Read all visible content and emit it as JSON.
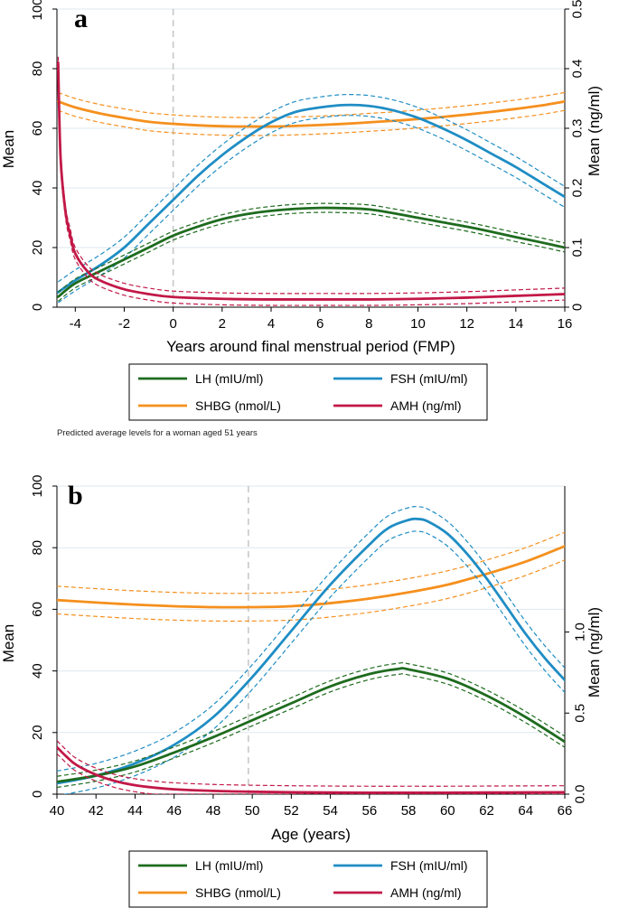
{
  "figure_note": "Predicted average levels for a woman aged 51 years",
  "colors": {
    "LH": "#1e6b1e",
    "FSH": "#1f8dc4",
    "SHBG": "#f5901e",
    "AMH": "#c21847",
    "grid": "#dfe7ee",
    "refline": "#c8c8c8"
  },
  "chart_data": [
    {
      "id": "a",
      "type": "line",
      "panel_label": "a",
      "xlabel": "Years around final menstrual period (FMP)",
      "ylabel": "Mean",
      "y2label": "Mean (ng/ml)",
      "xlim": [
        -4.75,
        16
      ],
      "ylim": [
        0,
        100
      ],
      "y2lim": [
        0,
        0.5
      ],
      "xticks": [
        -4,
        -2,
        0,
        2,
        4,
        6,
        8,
        10,
        12,
        14,
        16
      ],
      "xtick_labels": [
        "-4",
        "-2",
        "0",
        "2",
        "4",
        "6",
        "8",
        "10",
        "12",
        "14",
        "16"
      ],
      "yticks": [
        0,
        20,
        40,
        60,
        80,
        100
      ],
      "ytick_labels": [
        "0",
        "20",
        "40",
        "60",
        "80",
        "100"
      ],
      "y2ticks": [
        0,
        0.1,
        0.2,
        0.3,
        0.4,
        0.5
      ],
      "y2tick_labels": [
        "0",
        "0.1",
        "0.2",
        "0.3",
        "0.4",
        "0.5"
      ],
      "ref_x": 0,
      "series": [
        {
          "name": "LH (mIU/ml)",
          "key": "LH",
          "axis": "left",
          "ci": 1.5,
          "x": [
            -4.7,
            -4,
            -3,
            -2,
            -1,
            0,
            1,
            2,
            3,
            4,
            5,
            6,
            7,
            8,
            9,
            10,
            11,
            12,
            13,
            14,
            15,
            16
          ],
          "y": [
            3.5,
            8,
            12,
            16,
            20,
            24,
            27,
            29.5,
            31.2,
            32.3,
            33,
            33.3,
            33.2,
            32.8,
            31.5,
            30,
            28.5,
            27,
            25.3,
            23.5,
            21.8,
            20
          ]
        },
        {
          "name": "FSH (mIU/ml)",
          "key": "FSH",
          "axis": "left",
          "ci": 3.5,
          "x": [
            -4.7,
            -4,
            -3,
            -2,
            -1,
            0,
            1,
            2,
            3,
            4,
            5,
            6,
            7,
            8,
            9,
            10,
            11,
            12,
            13,
            14,
            15,
            16
          ],
          "y": [
            5,
            9,
            14,
            20,
            28,
            36,
            44,
            51,
            57,
            62,
            65.5,
            67,
            67.8,
            67.5,
            66,
            63.5,
            60,
            56,
            51.5,
            47,
            42,
            37
          ]
        },
        {
          "name": "SHBG (nmol/L)",
          "key": "SHBG",
          "axis": "left",
          "ci": 3.0,
          "x": [
            -4.7,
            -4,
            -3,
            -2,
            -1,
            0,
            1,
            2,
            3,
            4,
            5,
            6,
            7,
            8,
            9,
            10,
            11,
            12,
            13,
            14,
            15,
            16
          ],
          "y": [
            69,
            67,
            65,
            63.5,
            62.2,
            61.5,
            61,
            60.7,
            60.6,
            60.6,
            60.8,
            61.1,
            61.5,
            62,
            62.5,
            63.1,
            63.8,
            64.6,
            65.5,
            66.5,
            67.6,
            69
          ]
        },
        {
          "name": "AMH (ng/ml)",
          "key": "AMH",
          "axis": "right",
          "ci": 0.01,
          "x": [
            -4.7,
            -4.6,
            -4.4,
            -4.2,
            -4,
            -3.5,
            -3,
            -2,
            -1,
            0,
            2,
            4,
            6,
            8,
            10,
            12,
            14,
            16
          ],
          "y": [
            0.41,
            0.25,
            0.16,
            0.12,
            0.09,
            0.06,
            0.045,
            0.03,
            0.022,
            0.017,
            0.014,
            0.013,
            0.013,
            0.013,
            0.014,
            0.016,
            0.019,
            0.022
          ]
        }
      ]
    },
    {
      "id": "b",
      "type": "line",
      "panel_label": "b",
      "xlabel": "Age (years)",
      "ylabel": "Mean",
      "y2label": "Mean (ng/ml)",
      "xlim": [
        40,
        66
      ],
      "ylim": [
        0,
        100
      ],
      "y2lim": [
        0,
        1.9
      ],
      "xticks": [
        40,
        42,
        44,
        46,
        48,
        50,
        52,
        54,
        56,
        58,
        60,
        62,
        64,
        66
      ],
      "xtick_labels": [
        "40",
        "42",
        "44",
        "46",
        "48",
        "50",
        "52",
        "54",
        "56",
        "58",
        "60",
        "62",
        "64",
        "66"
      ],
      "yticks": [
        0,
        20,
        40,
        60,
        80,
        100
      ],
      "ytick_labels": [
        "0",
        "20",
        "40",
        "60",
        "80",
        "100"
      ],
      "y2ticks": [
        0,
        0.5,
        1.0
      ],
      "y2tick_labels": [
        "0.0",
        "0.5",
        "1.0"
      ],
      "ref_x": 49.8,
      "series": [
        {
          "name": "LH (mIU/ml)",
          "key": "LH",
          "axis": "left",
          "ci": 1.8,
          "x": [
            40,
            42,
            44,
            46,
            48,
            50,
            52,
            54,
            56,
            57.5,
            58,
            60,
            62,
            64,
            66
          ],
          "y": [
            4,
            6,
            9,
            13.5,
            18.5,
            24,
            29.5,
            35,
            39,
            40.7,
            40.5,
            37.5,
            32,
            25,
            17
          ]
        },
        {
          "name": "FSH (mIU/ml)",
          "key": "FSH",
          "axis": "left",
          "ci": 4.0,
          "x": [
            40,
            42,
            44,
            46,
            48,
            50,
            52,
            54,
            56,
            57,
            58,
            58.5,
            59,
            60,
            61,
            62,
            63,
            64,
            65,
            66
          ],
          "y": [
            3.5,
            6,
            10,
            16,
            25,
            38,
            53,
            68,
            81,
            86.5,
            89,
            89.3,
            88.5,
            84.5,
            78,
            70,
            61,
            52,
            44,
            37
          ]
        },
        {
          "name": "SHBG (nmol/L)",
          "key": "SHBG",
          "axis": "left",
          "ci": 4.5,
          "x": [
            40,
            42,
            44,
            46,
            48,
            50,
            52,
            54,
            56,
            58,
            60,
            62,
            64,
            66
          ],
          "y": [
            63,
            62.2,
            61.5,
            61,
            60.7,
            60.7,
            61,
            62,
            63.5,
            65.5,
            68,
            71.5,
            75.5,
            80.5
          ]
        },
        {
          "name": "AMH (ng/ml)",
          "key": "AMH",
          "axis": "right",
          "ci": 0.04,
          "x": [
            40,
            40.5,
            41,
            42,
            43,
            44,
            45,
            46,
            48,
            50,
            52,
            54,
            56,
            58,
            60,
            62,
            64,
            66
          ],
          "y": [
            0.29,
            0.23,
            0.18,
            0.12,
            0.08,
            0.055,
            0.04,
            0.03,
            0.02,
            0.015,
            0.012,
            0.01,
            0.009,
            0.009,
            0.009,
            0.01,
            0.011,
            0.012
          ]
        }
      ]
    }
  ]
}
